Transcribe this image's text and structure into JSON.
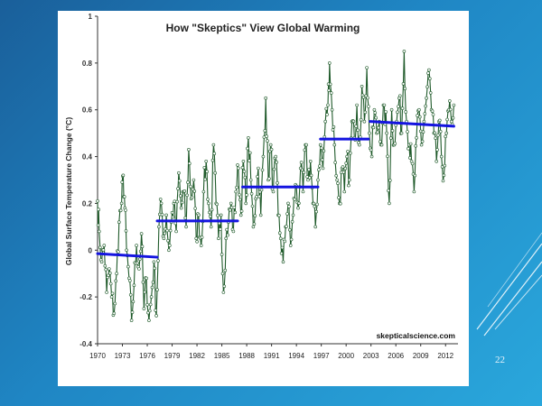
{
  "slide": {
    "number": "22",
    "accent_line_color": "#ffffff",
    "background_colors": [
      "#1a5f9a",
      "#1f86c4",
      "#2aa7dc"
    ]
  },
  "chart_data": {
    "type": "line",
    "title": "How \"Skeptics\" View Global Warming",
    "xlabel": "",
    "ylabel": "Global Surface Temperature Change (°C)",
    "xlim": [
      1970,
      2013.5
    ],
    "ylim": [
      -0.4,
      1
    ],
    "x_ticks": [
      "1970",
      "1973",
      "1976",
      "1979",
      "1982",
      "1985",
      "1988",
      "1991",
      "1994",
      "1997",
      "2000",
      "2003",
      "2006",
      "2009",
      "2012"
    ],
    "y_ticks": [
      "-0.4",
      "-0.2",
      "0",
      "0.2",
      "0.4",
      "0.6",
      "0.8",
      "1"
    ],
    "watermark": "skepticalscience.com",
    "grid": false,
    "series_color": "#1f5a2a",
    "marker_fill": "#ffffff",
    "trend_color": "#1414e0",
    "anchor_points": [
      {
        "x": 1970.0,
        "y": 0.21
      },
      {
        "x": 1970.2,
        "y": 0.08
      },
      {
        "x": 1970.5,
        "y": -0.05
      },
      {
        "x": 1970.8,
        "y": 0.02
      },
      {
        "x": 1971.1,
        "y": -0.18
      },
      {
        "x": 1971.4,
        "y": -0.08
      },
      {
        "x": 1971.7,
        "y": -0.2
      },
      {
        "x": 1972.0,
        "y": -0.27
      },
      {
        "x": 1972.3,
        "y": -0.1
      },
      {
        "x": 1972.6,
        "y": 0.12
      },
      {
        "x": 1972.9,
        "y": 0.2
      },
      {
        "x": 1973.1,
        "y": 0.32
      },
      {
        "x": 1973.3,
        "y": 0.18
      },
      {
        "x": 1973.5,
        "y": 0.0
      },
      {
        "x": 1973.8,
        "y": -0.12
      },
      {
        "x": 1974.1,
        "y": -0.3
      },
      {
        "x": 1974.4,
        "y": -0.15
      },
      {
        "x": 1974.7,
        "y": 0.02
      },
      {
        "x": 1975.0,
        "y": -0.08
      },
      {
        "x": 1975.3,
        "y": 0.07
      },
      {
        "x": 1975.6,
        "y": -0.25
      },
      {
        "x": 1975.9,
        "y": -0.12
      },
      {
        "x": 1976.2,
        "y": -0.3
      },
      {
        "x": 1976.5,
        "y": -0.2
      },
      {
        "x": 1976.8,
        "y": -0.05
      },
      {
        "x": 1977.1,
        "y": -0.28
      },
      {
        "x": 1977.4,
        "y": 0.1
      },
      {
        "x": 1977.7,
        "y": 0.2
      },
      {
        "x": 1978.0,
        "y": 0.05
      },
      {
        "x": 1978.3,
        "y": 0.15
      },
      {
        "x": 1978.6,
        "y": 0.0
      },
      {
        "x": 1978.9,
        "y": 0.12
      },
      {
        "x": 1979.2,
        "y": 0.2
      },
      {
        "x": 1979.5,
        "y": 0.08
      },
      {
        "x": 1979.8,
        "y": 0.33
      },
      {
        "x": 1980.1,
        "y": 0.18
      },
      {
        "x": 1980.4,
        "y": 0.25
      },
      {
        "x": 1980.7,
        "y": 0.1
      },
      {
        "x": 1981.0,
        "y": 0.43
      },
      {
        "x": 1981.3,
        "y": 0.22
      },
      {
        "x": 1981.6,
        "y": 0.3
      },
      {
        "x": 1981.9,
        "y": 0.05
      },
      {
        "x": 1982.2,
        "y": 0.15
      },
      {
        "x": 1982.5,
        "y": 0.02
      },
      {
        "x": 1982.8,
        "y": 0.25
      },
      {
        "x": 1983.1,
        "y": 0.38
      },
      {
        "x": 1983.4,
        "y": 0.2
      },
      {
        "x": 1983.7,
        "y": 0.1
      },
      {
        "x": 1984.0,
        "y": 0.45
      },
      {
        "x": 1984.3,
        "y": 0.2
      },
      {
        "x": 1984.6,
        "y": 0.05
      },
      {
        "x": 1984.9,
        "y": 0.15
      },
      {
        "x": 1985.2,
        "y": -0.18
      },
      {
        "x": 1985.5,
        "y": 0.05
      },
      {
        "x": 1985.8,
        "y": 0.12
      },
      {
        "x": 1986.1,
        "y": 0.2
      },
      {
        "x": 1986.4,
        "y": 0.08
      },
      {
        "x": 1986.7,
        "y": 0.25
      },
      {
        "x": 1987.0,
        "y": 0.35
      },
      {
        "x": 1987.3,
        "y": 0.15
      },
      {
        "x": 1987.6,
        "y": 0.38
      },
      {
        "x": 1987.9,
        "y": 0.2
      },
      {
        "x": 1988.2,
        "y": 0.48
      },
      {
        "x": 1988.5,
        "y": 0.3
      },
      {
        "x": 1988.8,
        "y": 0.1
      },
      {
        "x": 1989.1,
        "y": 0.22
      },
      {
        "x": 1989.4,
        "y": 0.35
      },
      {
        "x": 1989.7,
        "y": 0.15
      },
      {
        "x": 1990.0,
        "y": 0.4
      },
      {
        "x": 1990.3,
        "y": 0.65
      },
      {
        "x": 1990.6,
        "y": 0.3
      },
      {
        "x": 1990.9,
        "y": 0.45
      },
      {
        "x": 1991.2,
        "y": 0.25
      },
      {
        "x": 1991.5,
        "y": 0.4
      },
      {
        "x": 1991.8,
        "y": 0.15
      },
      {
        "x": 1992.1,
        "y": 0.05
      },
      {
        "x": 1992.4,
        "y": -0.05
      },
      {
        "x": 1992.7,
        "y": 0.1
      },
      {
        "x": 1993.0,
        "y": 0.2
      },
      {
        "x": 1993.3,
        "y": 0.02
      },
      {
        "x": 1993.6,
        "y": 0.15
      },
      {
        "x": 1993.9,
        "y": 0.28
      },
      {
        "x": 1994.2,
        "y": 0.18
      },
      {
        "x": 1994.5,
        "y": 0.35
      },
      {
        "x": 1994.8,
        "y": 0.25
      },
      {
        "x": 1995.1,
        "y": 0.45
      },
      {
        "x": 1995.4,
        "y": 0.3
      },
      {
        "x": 1995.7,
        "y": 0.38
      },
      {
        "x": 1996.0,
        "y": 0.2
      },
      {
        "x": 1996.3,
        "y": 0.1
      },
      {
        "x": 1996.6,
        "y": 0.3
      },
      {
        "x": 1996.9,
        "y": 0.45
      },
      {
        "x": 1997.2,
        "y": 0.35
      },
      {
        "x": 1997.5,
        "y": 0.55
      },
      {
        "x": 1997.8,
        "y": 0.62
      },
      {
        "x": 1998.0,
        "y": 0.8
      },
      {
        "x": 1998.3,
        "y": 0.6
      },
      {
        "x": 1998.6,
        "y": 0.45
      },
      {
        "x": 1998.9,
        "y": 0.3
      },
      {
        "x": 1999.2,
        "y": 0.2
      },
      {
        "x": 1999.5,
        "y": 0.35
      },
      {
        "x": 1999.8,
        "y": 0.25
      },
      {
        "x": 2000.1,
        "y": 0.4
      },
      {
        "x": 2000.4,
        "y": 0.3
      },
      {
        "x": 2000.7,
        "y": 0.55
      },
      {
        "x": 2001.0,
        "y": 0.48
      },
      {
        "x": 2001.3,
        "y": 0.62
      },
      {
        "x": 2001.6,
        "y": 0.45
      },
      {
        "x": 2001.9,
        "y": 0.7
      },
      {
        "x": 2002.2,
        "y": 0.55
      },
      {
        "x": 2002.5,
        "y": 0.78
      },
      {
        "x": 2002.8,
        "y": 0.5
      },
      {
        "x": 2003.1,
        "y": 0.4
      },
      {
        "x": 2003.4,
        "y": 0.6
      },
      {
        "x": 2003.7,
        "y": 0.5
      },
      {
        "x": 2004.0,
        "y": 0.55
      },
      {
        "x": 2004.3,
        "y": 0.45
      },
      {
        "x": 2004.6,
        "y": 0.62
      },
      {
        "x": 2004.9,
        "y": 0.5
      },
      {
        "x": 2005.2,
        "y": 0.2
      },
      {
        "x": 2005.5,
        "y": 0.6
      },
      {
        "x": 2005.8,
        "y": 0.45
      },
      {
        "x": 2006.1,
        "y": 0.55
      },
      {
        "x": 2006.4,
        "y": 0.65
      },
      {
        "x": 2006.7,
        "y": 0.5
      },
      {
        "x": 2007.0,
        "y": 0.85
      },
      {
        "x": 2007.3,
        "y": 0.55
      },
      {
        "x": 2007.6,
        "y": 0.45
      },
      {
        "x": 2007.9,
        "y": 0.38
      },
      {
        "x": 2008.2,
        "y": 0.25
      },
      {
        "x": 2008.5,
        "y": 0.48
      },
      {
        "x": 2008.8,
        "y": 0.6
      },
      {
        "x": 2009.1,
        "y": 0.45
      },
      {
        "x": 2009.4,
        "y": 0.55
      },
      {
        "x": 2009.7,
        "y": 0.65
      },
      {
        "x": 2010.0,
        "y": 0.77
      },
      {
        "x": 2010.3,
        "y": 0.6
      },
      {
        "x": 2010.6,
        "y": 0.5
      },
      {
        "x": 2010.9,
        "y": 0.38
      },
      {
        "x": 2011.2,
        "y": 0.55
      },
      {
        "x": 2011.5,
        "y": 0.4
      },
      {
        "x": 2011.8,
        "y": 0.32
      },
      {
        "x": 2012.1,
        "y": 0.5
      },
      {
        "x": 2012.4,
        "y": 0.6
      },
      {
        "x": 2012.7,
        "y": 0.55
      },
      {
        "x": 2013.0,
        "y": 0.62
      }
    ],
    "trend_segments": [
      {
        "x0": 1970.0,
        "x1": 1977.2,
        "y0": -0.015,
        "y1": -0.03
      },
      {
        "x0": 1977.2,
        "x1": 1986.9,
        "y": 0.125
      },
      {
        "x0": 1987.5,
        "x1": 1996.6,
        "y": 0.27
      },
      {
        "x0": 1996.9,
        "x1": 2002.7,
        "y": 0.475
      },
      {
        "x0": 2002.9,
        "x1": 2013.0,
        "y0": 0.55,
        "y1": 0.53
      }
    ]
  }
}
